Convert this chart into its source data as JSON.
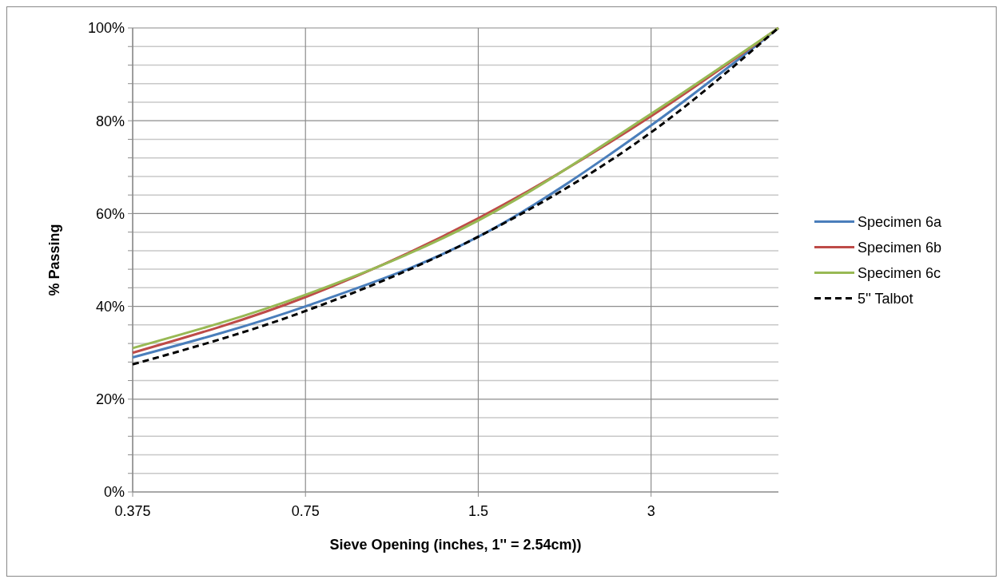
{
  "chart_data": {
    "type": "line",
    "xlabel": "Sieve Opening (inches, 1'' = 2.54cm))",
    "ylabel": "% Passing",
    "x": [
      0.375,
      0.75,
      1.5,
      3,
      5
    ],
    "log": "x",
    "xlim": [
      0.375,
      5
    ],
    "xticks": [
      0.375,
      0.75,
      1.5,
      3
    ],
    "ylim": [
      0,
      100
    ],
    "yticks": [
      {
        "value": 0,
        "label": "0%"
      },
      {
        "value": 4,
        "label": null
      },
      {
        "value": 8,
        "label": null
      },
      {
        "value": 12,
        "label": null
      },
      {
        "value": 16,
        "label": null
      },
      {
        "value": 20,
        "label": "20%"
      },
      {
        "value": 24,
        "label": null
      },
      {
        "value": 28,
        "label": null
      },
      {
        "value": 32,
        "label": null
      },
      {
        "value": 36,
        "label": null
      },
      {
        "value": 40,
        "label": "40%"
      },
      {
        "value": 44,
        "label": null
      },
      {
        "value": 48,
        "label": null
      },
      {
        "value": 52,
        "label": null
      },
      {
        "value": 56,
        "label": null
      },
      {
        "value": 60,
        "label": "60%"
      },
      {
        "value": 64,
        "label": null
      },
      {
        "value": 68,
        "label": null
      },
      {
        "value": 72,
        "label": null
      },
      {
        "value": 76,
        "label": null
      },
      {
        "value": 80,
        "label": "80%"
      },
      {
        "value": 84,
        "label": null
      },
      {
        "value": 88,
        "label": null
      },
      {
        "value": 92,
        "label": null
      },
      {
        "value": 96,
        "label": null
      },
      {
        "value": 100,
        "label": "100%"
      }
    ],
    "grid": true,
    "legend": "right",
    "marker": "none",
    "series": [
      {
        "name": "Specimen 6a",
        "color": "#4a7ebb",
        "values": [
          29,
          40,
          55,
          79,
          100
        ]
      },
      {
        "name": "Specimen 6b",
        "color": "#be4b48",
        "values": [
          30,
          42,
          59,
          81,
          100
        ]
      },
      {
        "name": "Specimen 6c",
        "color": "#98b954",
        "values": [
          31,
          42.5,
          58.5,
          81.5,
          100
        ]
      },
      {
        "name": "5'' Talbot",
        "color": "#000000",
        "values": [
          27.5,
          39,
          55,
          77.5,
          100
        ],
        "line_style": "dashed"
      }
    ]
  }
}
